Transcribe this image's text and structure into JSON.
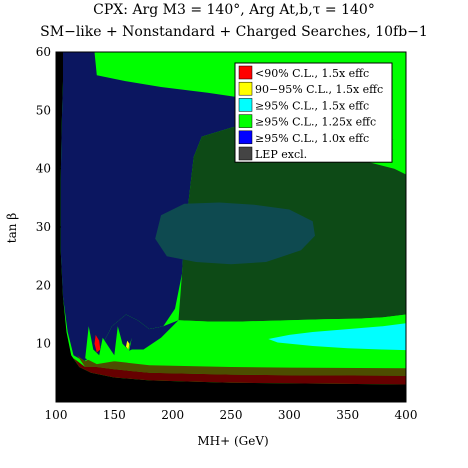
{
  "chart_data": {
    "type": "heatmap",
    "title_line1": "CPX:  Arg M3 = 140°,  Arg At,b,τ = 140°",
    "title_line2": "SM−like + Nonstandard + Charged Searches, 10fb−1",
    "xlabel": "MH+ (GeV)",
    "ylabel": "tan β",
    "xlim": [
      100,
      400
    ],
    "ylim": [
      0,
      60
    ],
    "x_ticks": [
      100,
      150,
      200,
      250,
      300,
      350,
      400
    ],
    "y_ticks": [
      10,
      20,
      30,
      40,
      50,
      60
    ],
    "legend": {
      "placement": "top-right",
      "entries": [
        {
          "label": "<90% C.L., 1.5x effc",
          "color": "#ff0000"
        },
        {
          "label": "90−95% C.L., 1.5x effc",
          "color": "#ffff00"
        },
        {
          "label": "≥95% C.L., 1.5x effc",
          "color": "#00ffff"
        },
        {
          "label": "≥95% C.L., 1.25x effc",
          "color": "#00ff00"
        },
        {
          "label": "≥95% C.L., 1.0x effc",
          "color": "#0000ff"
        },
        {
          "label": "LEP excl.",
          "color": "#444444"
        }
      ]
    },
    "colors": {
      "excluded_black": "#000000",
      "dark_navy": "#0b1660",
      "dark_green": "#0d4a16",
      "dark_teal": "#0e4a50",
      "light_green": "#00ff00",
      "cyan": "#00ffff",
      "dark_red": "#660000",
      "dark_olive": "#4d4d00"
    },
    "regions": [
      {
        "name": "LEP excluded",
        "color_key": "excluded_black",
        "points": [
          [
            100,
            60
          ],
          [
            106,
            60
          ],
          [
            106,
            55
          ],
          [
            105,
            48
          ],
          [
            104,
            38
          ],
          [
            104,
            26
          ],
          [
            106,
            18
          ],
          [
            109,
            12
          ],
          [
            113,
            8
          ],
          [
            120,
            6
          ],
          [
            130,
            5
          ],
          [
            150,
            4.2
          ],
          [
            180,
            3.7
          ],
          [
            250,
            3.3
          ],
          [
            400,
            3.0
          ],
          [
            400,
            0
          ],
          [
            100,
            0
          ]
        ]
      },
      {
        "name": "≥95% C.L., 1.0x effc (dark)",
        "color_key": "dark_navy",
        "points": [
          [
            106,
            60
          ],
          [
            133,
            60
          ],
          [
            135,
            56
          ],
          [
            160,
            55
          ],
          [
            190,
            54
          ],
          [
            230,
            53
          ],
          [
            265,
            52
          ],
          [
            275,
            50
          ],
          [
            270,
            48
          ],
          [
            250,
            47
          ],
          [
            225,
            45.5
          ],
          [
            218,
            42
          ],
          [
            214,
            35
          ],
          [
            210,
            28
          ],
          [
            208,
            22
          ],
          [
            202,
            16
          ],
          [
            192,
            13
          ],
          [
            180,
            12.5
          ],
          [
            170,
            14
          ],
          [
            160,
            15
          ],
          [
            148,
            13
          ],
          [
            140,
            10
          ],
          [
            132,
            8
          ],
          [
            124,
            7
          ],
          [
            115,
            8
          ],
          [
            110,
            12
          ],
          [
            106,
            18
          ],
          [
            104,
            26
          ],
          [
            104,
            38
          ],
          [
            105,
            48
          ],
          [
            106,
            55
          ]
        ]
      },
      {
        "name": "≥95% C.L., 1.25x effc (dark)",
        "color_key": "dark_green",
        "points": [
          [
            218,
            42
          ],
          [
            225,
            45.5
          ],
          [
            250,
            47
          ],
          [
            270,
            48
          ],
          [
            300,
            47
          ],
          [
            340,
            46
          ],
          [
            390,
            45
          ],
          [
            400,
            45
          ],
          [
            400,
            15
          ],
          [
            380,
            14.5
          ],
          [
            360,
            14.3
          ],
          [
            330,
            14.2
          ],
          [
            300,
            14
          ],
          [
            260,
            13.8
          ],
          [
            230,
            13.8
          ],
          [
            205,
            14
          ],
          [
            208,
            22
          ],
          [
            210,
            28
          ],
          [
            214,
            35
          ]
        ]
      },
      {
        "name": "dark teal blob",
        "color_key": "dark_teal",
        "points": [
          [
            190,
            32
          ],
          [
            210,
            34
          ],
          [
            240,
            34.2
          ],
          [
            270,
            33.8
          ],
          [
            300,
            33
          ],
          [
            320,
            31
          ],
          [
            322,
            28.5
          ],
          [
            310,
            26
          ],
          [
            280,
            24
          ],
          [
            250,
            23.6
          ],
          [
            220,
            24
          ],
          [
            195,
            25
          ],
          [
            185,
            28
          ]
        ]
      },
      {
        "name": "≥95% C.L., 1.25x effc (light)",
        "color_key": "light_green",
        "points": [
          [
            300,
            47
          ],
          [
            340,
            46
          ],
          [
            390,
            45
          ],
          [
            400,
            45
          ],
          [
            400,
            39
          ],
          [
            390,
            40
          ],
          [
            370,
            41
          ],
          [
            345,
            42
          ],
          [
            320,
            43
          ],
          [
            305,
            45
          ]
        ]
      },
      {
        "name": "≥95% C.L., 1.25x effc band",
        "color_key": "light_green",
        "points": [
          [
            400,
            15
          ],
          [
            380,
            14.5
          ],
          [
            360,
            14.3
          ],
          [
            330,
            14.2
          ],
          [
            300,
            14
          ],
          [
            260,
            13.8
          ],
          [
            230,
            13.8
          ],
          [
            205,
            14
          ],
          [
            192,
            13
          ],
          [
            180,
            12.5
          ],
          [
            170,
            14
          ],
          [
            160,
            15
          ],
          [
            148,
            13
          ],
          [
            140,
            10
          ],
          [
            135,
            8
          ],
          [
            150,
            7
          ],
          [
            180,
            6.3
          ],
          [
            250,
            6
          ],
          [
            300,
            5.9
          ],
          [
            400,
            5.8
          ]
        ]
      },
      {
        "name": "≥95% C.L., 1.5x effc",
        "color_key": "cyan",
        "points": [
          [
            400,
            13.5
          ],
          [
            380,
            13
          ],
          [
            350,
            12.5
          ],
          [
            320,
            12
          ],
          [
            300,
            11.5
          ],
          [
            282,
            10.8
          ],
          [
            290,
            10.2
          ],
          [
            320,
            9.6
          ],
          [
            350,
            9.2
          ],
          [
            380,
            9
          ],
          [
            400,
            8.9
          ]
        ]
      },
      {
        "name": "≥95% C.L., 1.0x effc band",
        "color_key": "dark_navy",
        "points": [
          [
            132,
            8
          ],
          [
            140,
            10
          ],
          [
            148,
            13
          ],
          [
            160,
            15
          ],
          [
            170,
            14
          ],
          [
            180,
            12.5
          ],
          [
            192,
            13
          ],
          [
            205,
            14
          ],
          [
            190,
            11
          ],
          [
            175,
            9
          ],
          [
            165,
            9
          ],
          [
            155,
            8
          ],
          [
            145,
            7.5
          ],
          [
            138,
            7
          ]
        ]
      },
      {
        "name": "dark olive strip",
        "color_key": "dark_olive",
        "points": [
          [
            118,
            8
          ],
          [
            125,
            7
          ],
          [
            135,
            8
          ],
          [
            150,
            7
          ],
          [
            180,
            6.3
          ],
          [
            250,
            6
          ],
          [
            300,
            5.9
          ],
          [
            400,
            5.8
          ],
          [
            400,
            4.5
          ],
          [
            300,
            4.6
          ],
          [
            250,
            4.7
          ],
          [
            180,
            5
          ],
          [
            150,
            5.6
          ],
          [
            135,
            6
          ],
          [
            125,
            6
          ]
        ]
      },
      {
        "name": "dark red strip",
        "color_key": "dark_red",
        "points": [
          [
            115,
            7.5
          ],
          [
            125,
            6
          ],
          [
            135,
            6
          ],
          [
            150,
            5.6
          ],
          [
            180,
            5
          ],
          [
            250,
            4.7
          ],
          [
            300,
            4.6
          ],
          [
            400,
            4.5
          ],
          [
            400,
            3.0
          ],
          [
            250,
            3.3
          ],
          [
            180,
            3.7
          ],
          [
            150,
            4.2
          ],
          [
            130,
            5
          ],
          [
            120,
            6
          ]
        ]
      },
      {
        "name": "green spikes",
        "color_key": "light_green",
        "points": [
          [
            128,
            13
          ],
          [
            132,
            9
          ],
          [
            137,
            8
          ],
          [
            140,
            11
          ],
          [
            145,
            9.5
          ],
          [
            150,
            8
          ],
          [
            153,
            13
          ],
          [
            157,
            10
          ],
          [
            162,
            9
          ],
          [
            165,
            11
          ],
          [
            162,
            8
          ],
          [
            150,
            7
          ],
          [
            135,
            6.5
          ],
          [
            125,
            7.5
          ]
        ]
      },
      {
        "name": "<90% C.L., 1.5x effc",
        "color_key": "red_spot",
        "points": [
          [
            134,
            11.5
          ],
          [
            137,
            10.5
          ],
          [
            138,
            9
          ],
          [
            135,
            8.5
          ],
          [
            133,
            10
          ]
        ]
      },
      {
        "name": "90−95% C.L., 1.5x effc",
        "color_key": "yellow_spot",
        "points": [
          [
            161,
            10.5
          ],
          [
            163,
            10
          ],
          [
            162,
            9
          ],
          [
            160,
            9.5
          ]
        ]
      }
    ]
  }
}
